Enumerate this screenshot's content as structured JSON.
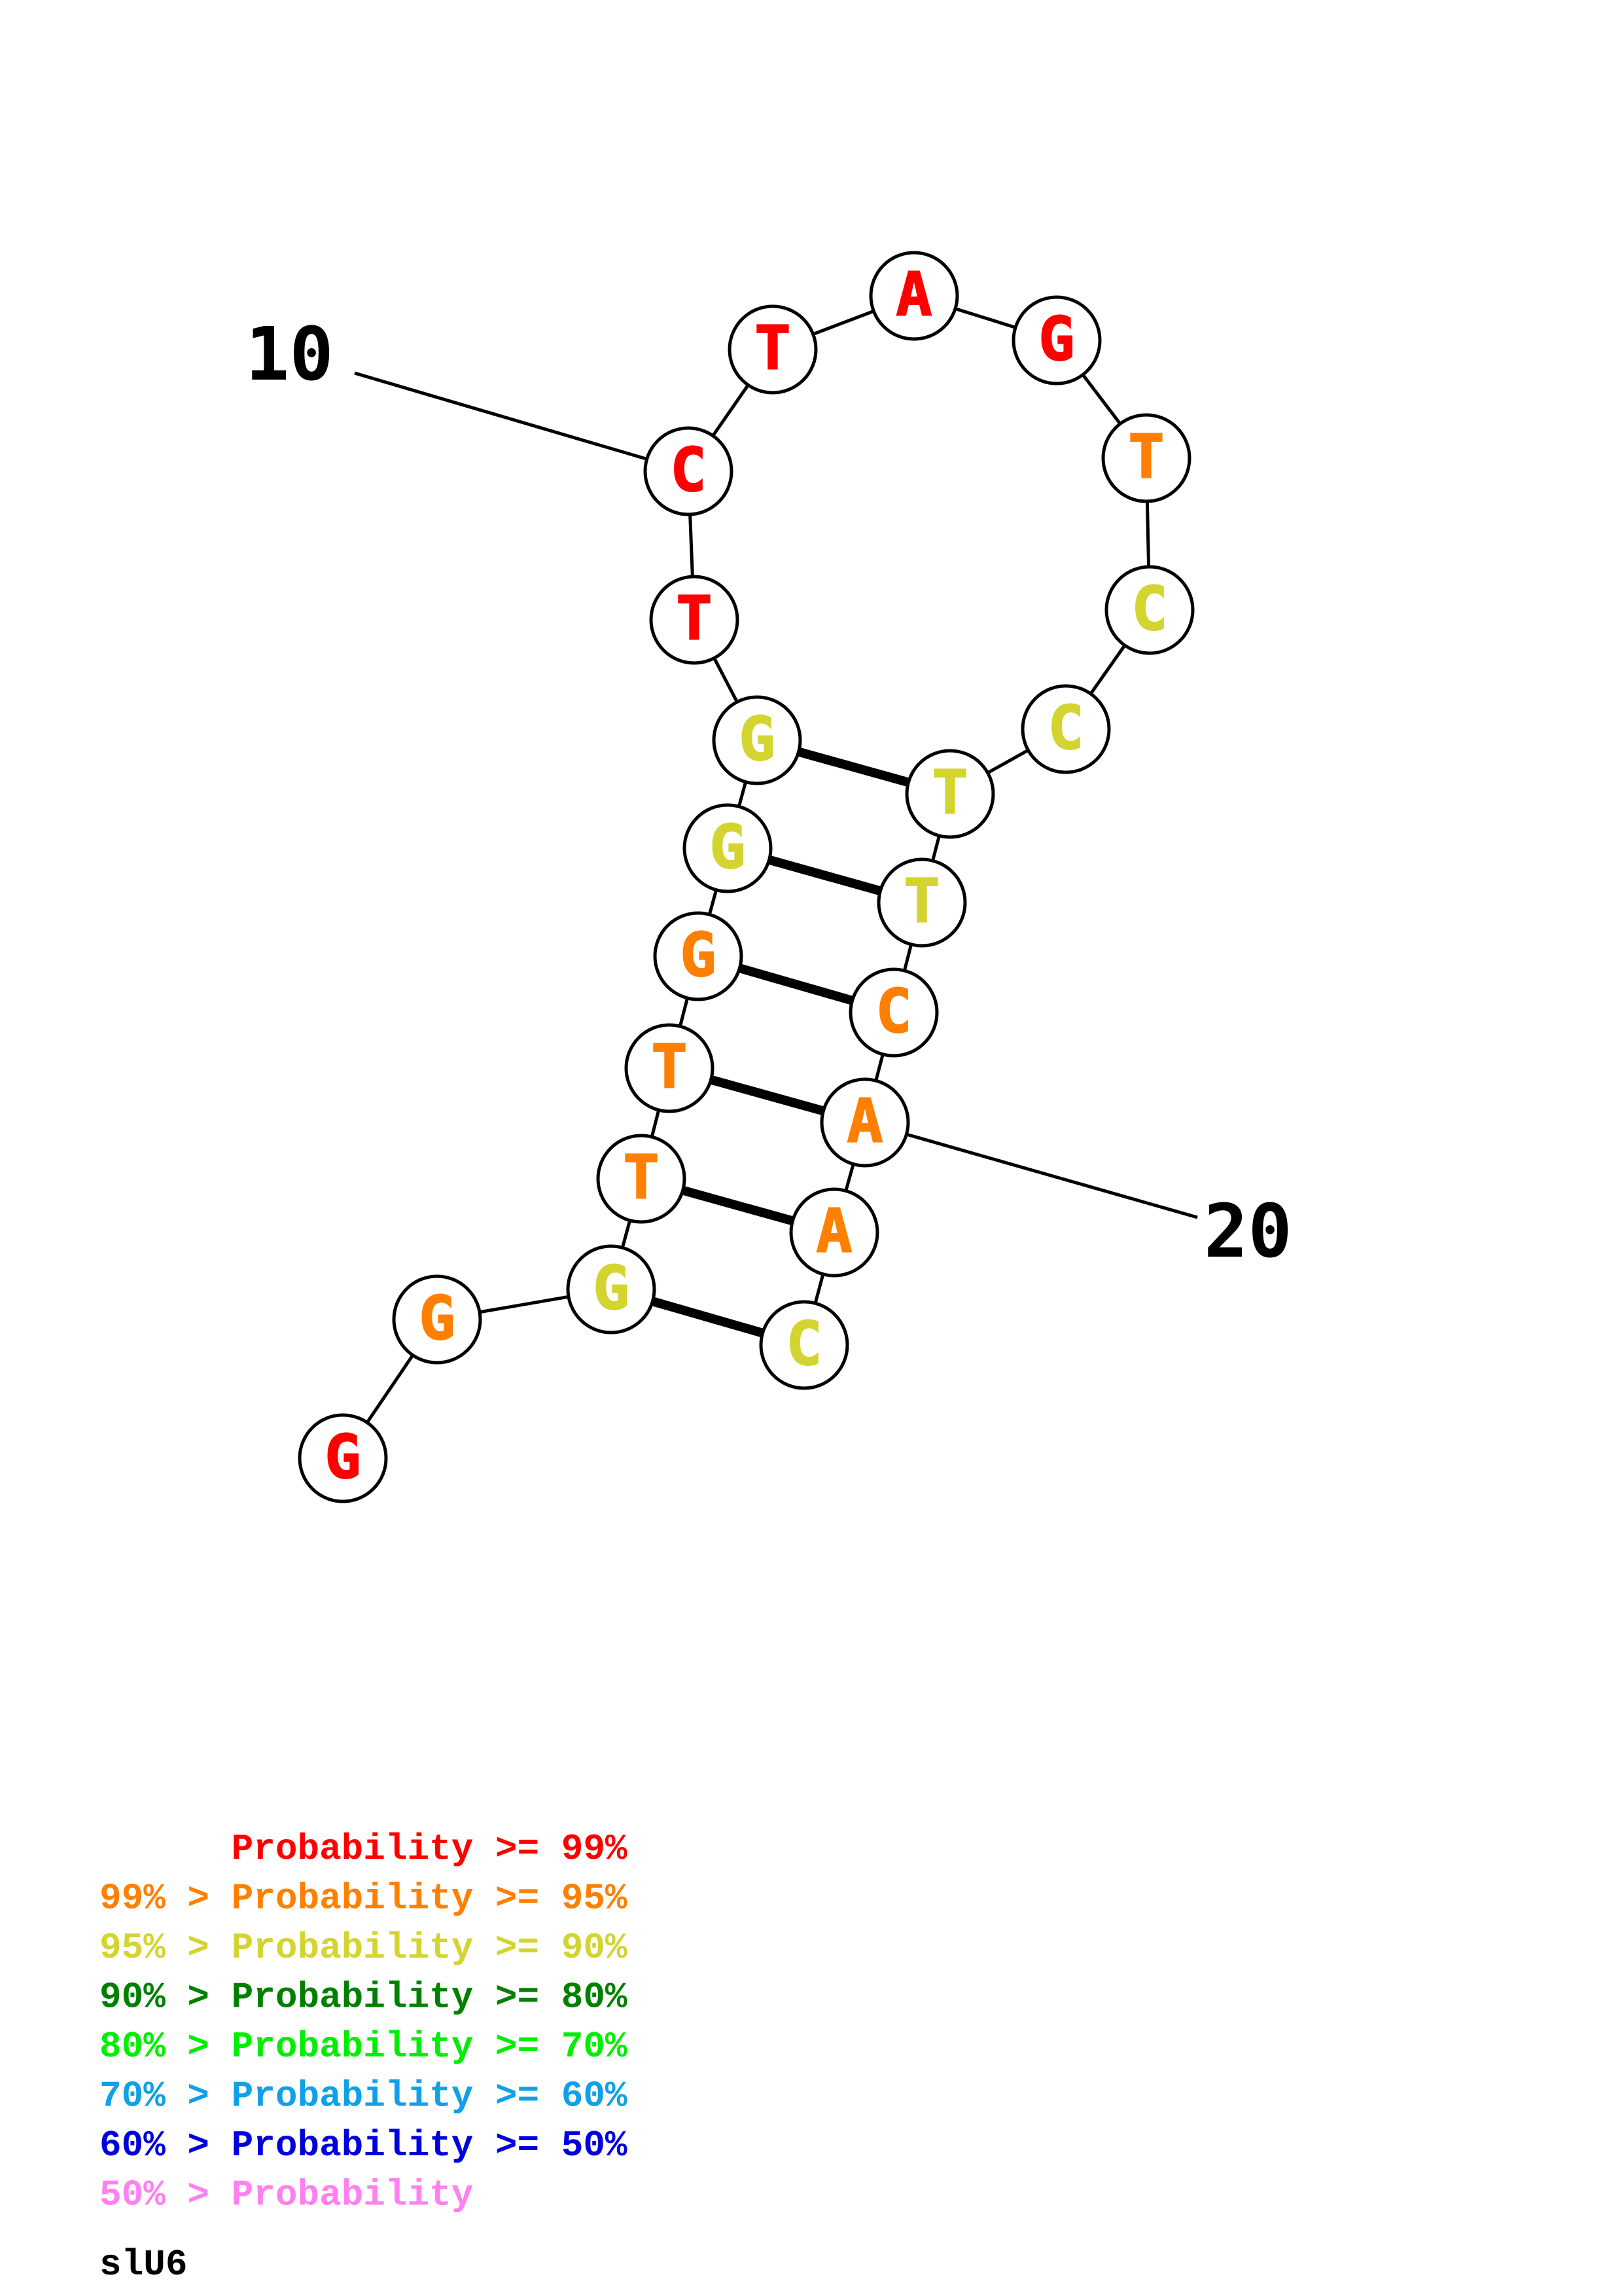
{
  "colors": {
    "p99": "#ff0000",
    "p95": "#ff8000",
    "p90": "#d4d430",
    "p80": "#008000",
    "p70": "#00ee00",
    "p60": "#10a0e8",
    "p50": "#0000dd",
    "plow": "#ff80ee"
  },
  "bases": [
    {
      "index": 1,
      "letter": "G",
      "color": "#ff0000"
    },
    {
      "index": 2,
      "letter": "G",
      "color": "#ff8000"
    },
    {
      "index": 3,
      "letter": "G",
      "color": "#d4d430"
    },
    {
      "index": 4,
      "letter": "T",
      "color": "#ff8000"
    },
    {
      "index": 5,
      "letter": "T",
      "color": "#ff8000"
    },
    {
      "index": 6,
      "letter": "G",
      "color": "#ff8000"
    },
    {
      "index": 7,
      "letter": "G",
      "color": "#d4d430"
    },
    {
      "index": 8,
      "letter": "G",
      "color": "#d4d430"
    },
    {
      "index": 9,
      "letter": "T",
      "color": "#ff0000"
    },
    {
      "index": 10,
      "letter": "C",
      "color": "#ff0000"
    },
    {
      "index": 11,
      "letter": "T",
      "color": "#ff0000"
    },
    {
      "index": 12,
      "letter": "A",
      "color": "#ff0000"
    },
    {
      "index": 13,
      "letter": "G",
      "color": "#ff0000"
    },
    {
      "index": 14,
      "letter": "T",
      "color": "#ff8000"
    },
    {
      "index": 15,
      "letter": "C",
      "color": "#d4d430"
    },
    {
      "index": 16,
      "letter": "C",
      "color": "#d4d430"
    },
    {
      "index": 17,
      "letter": "T",
      "color": "#d4d430"
    },
    {
      "index": 18,
      "letter": "T",
      "color": "#d4d430"
    },
    {
      "index": 19,
      "letter": "C",
      "color": "#ff8000"
    },
    {
      "index": 20,
      "letter": "A",
      "color": "#ff8000"
    },
    {
      "index": 21,
      "letter": "A",
      "color": "#ff8000"
    },
    {
      "index": 22,
      "letter": "C",
      "color": "#d4d430"
    }
  ],
  "pairs": [
    [
      3,
      22
    ],
    [
      4,
      21
    ],
    [
      5,
      20
    ],
    [
      6,
      19
    ],
    [
      7,
      18
    ],
    [
      8,
      17
    ]
  ],
  "position_labels": [
    {
      "index": 10,
      "text": "10"
    },
    {
      "index": 20,
      "text": "20"
    }
  ],
  "legend": [
    {
      "prefix": "",
      "text": "Probability >= 99%",
      "color": "#ff0000"
    },
    {
      "prefix": "99% > ",
      "text": "Probability >= 95%",
      "color": "#ff8000"
    },
    {
      "prefix": "95% > ",
      "text": "Probability >= 90%",
      "color": "#d4d430"
    },
    {
      "prefix": "90% > ",
      "text": "Probability >= 80%",
      "color": "#008000"
    },
    {
      "prefix": "80% > ",
      "text": "Probability >= 70%",
      "color": "#00ee00"
    },
    {
      "prefix": "70% > ",
      "text": "Probability >= 60%",
      "color": "#10a0e8"
    },
    {
      "prefix": "60% > ",
      "text": "Probability >= 50%",
      "color": "#0000dd"
    },
    {
      "prefix": "50% > ",
      "text": "Probability",
      "color": "#ff80ee"
    }
  ],
  "caption": "slU6"
}
